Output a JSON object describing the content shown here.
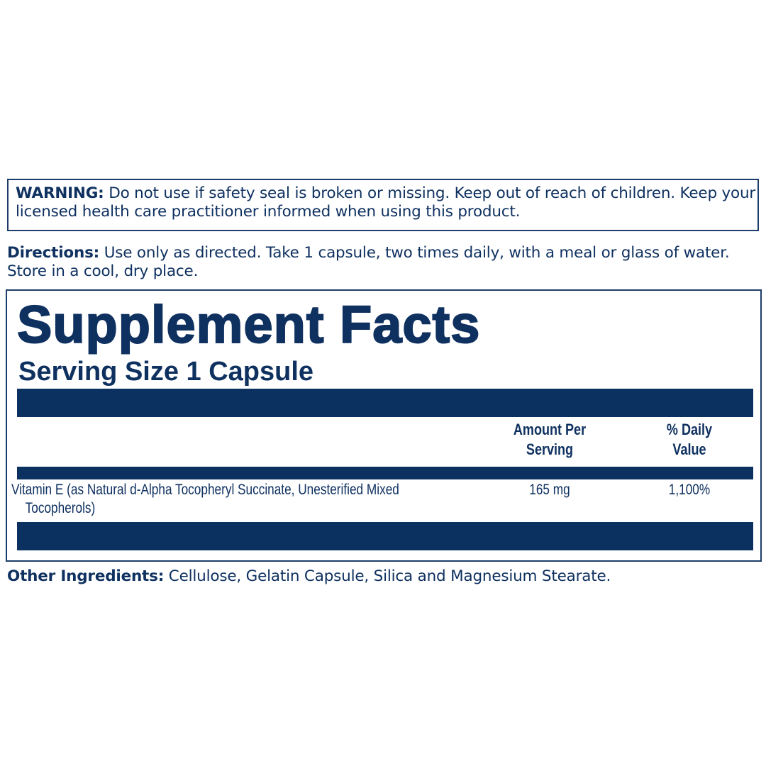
{
  "warning": {
    "label": "WARNING:",
    "text": " Do not use if safety seal is broken or missing. Keep out of reach of children. Keep your licensed health care practitioner informed when using this product."
  },
  "directions": {
    "label": "Directions:",
    "text": " Use only as directed. Take 1 capsule, two times daily, with a meal or glass of water. Store in a cool, dry place."
  },
  "facts": {
    "title": "Supplement Facts",
    "serving_size": "Serving Size 1 Capsule",
    "col_amount_line1": "Amount Per",
    "col_amount_line2": "Serving",
    "col_dv_line1": "% Daily",
    "col_dv_line2": "Value",
    "rows": [
      {
        "name_line1": "Vitamin E (as Natural d-Alpha Tocopheryl Succinate, Unesterified Mixed",
        "name_line2": "Tocopherols)",
        "amount": "165 mg",
        "dv": "1,100%"
      }
    ]
  },
  "other": {
    "label": "Other Ingredients:",
    "text": " Cellulose, Gelatin Capsule, Silica and Magnesium Stearate."
  },
  "colors": {
    "label_blue": "#0b3160"
  }
}
